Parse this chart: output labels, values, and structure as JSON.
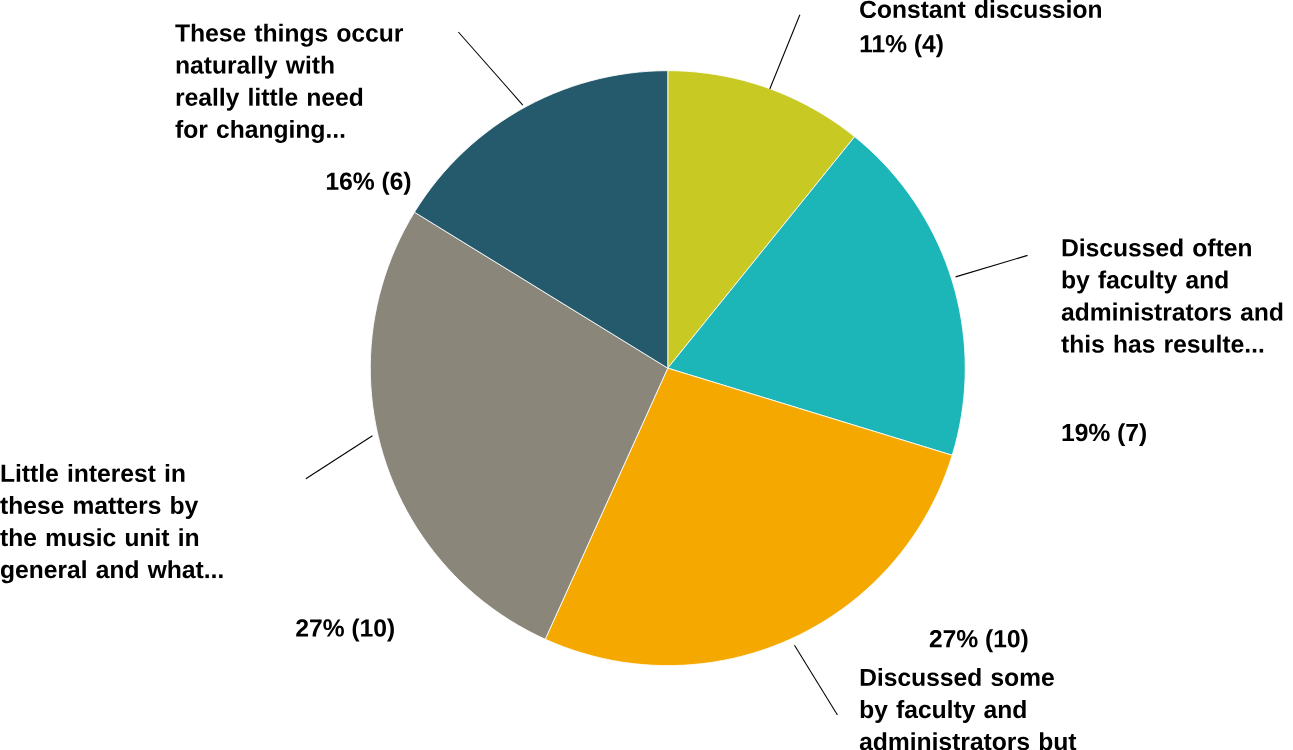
{
  "chart_data": {
    "type": "pie",
    "categories": [
      "Constant discussion",
      "Discussed often by faculty and administrators and this has resulte...",
      "Discussed some by faculty and administrators but",
      "Little interest in these matters by the music unit in general and what...",
      "These things occur naturally with really little need for changing..."
    ],
    "values": [
      4,
      7,
      10,
      10,
      6
    ],
    "value_labels": [
      "11% (4)",
      "19% (7)",
      "27% (10)",
      "27% (10)",
      "16% (6)"
    ],
    "colors": [
      "#c9c923",
      "#1cb5b8",
      "#f5a900",
      "#8a877a",
      "#245a6b"
    ]
  }
}
